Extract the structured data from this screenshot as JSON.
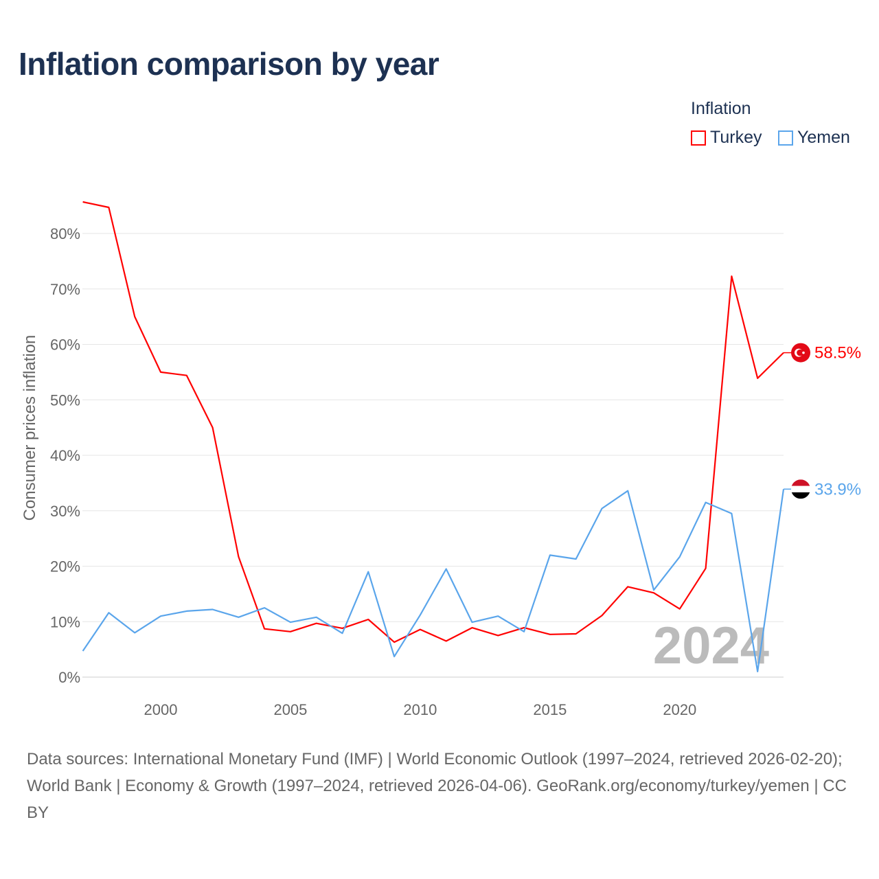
{
  "title": "Inflation comparison by year",
  "legend": {
    "title": "Inflation",
    "items": [
      {
        "name": "Turkey",
        "color": "#ff0000"
      },
      {
        "name": "Yemen",
        "color": "#5aa5eb"
      }
    ]
  },
  "chart_data": {
    "type": "line",
    "title": "Inflation comparison by year",
    "xlabel": "",
    "ylabel": "Consumer prices inflation",
    "x": [
      1997,
      1998,
      1999,
      2000,
      2001,
      2002,
      2003,
      2004,
      2005,
      2006,
      2007,
      2008,
      2009,
      2010,
      2011,
      2012,
      2013,
      2014,
      2015,
      2016,
      2017,
      2018,
      2019,
      2020,
      2021,
      2022,
      2023,
      2024
    ],
    "xlim": [
      1997,
      2024
    ],
    "ylim": [
      0,
      80
    ],
    "x_ticks": [
      {
        "v": 2000,
        "label": "2000"
      },
      {
        "v": 2005,
        "label": "2005"
      },
      {
        "v": 2010,
        "label": "2010"
      },
      {
        "v": 2015,
        "label": "2015"
      },
      {
        "v": 2020,
        "label": "2020"
      }
    ],
    "y_ticks": [
      {
        "v": 0,
        "label": "0%"
      },
      {
        "v": 10,
        "label": "10%"
      },
      {
        "v": 20,
        "label": "20%"
      },
      {
        "v": 30,
        "label": "30%"
      },
      {
        "v": 40,
        "label": "40%"
      },
      {
        "v": 50,
        "label": "50%"
      },
      {
        "v": 60,
        "label": "60%"
      },
      {
        "v": 70,
        "label": "70%"
      },
      {
        "v": 80,
        "label": "80%"
      }
    ],
    "grid": true,
    "legend_position": "top-right",
    "year_watermark": "2024",
    "series": [
      {
        "name": "Turkey",
        "color": "#ff0000",
        "end_label": "58.5%",
        "values": [
          85.7,
          84.7,
          65.0,
          55.0,
          54.4,
          45.0,
          21.7,
          8.7,
          8.2,
          9.7,
          8.8,
          10.4,
          6.3,
          8.6,
          6.5,
          8.9,
          7.5,
          8.9,
          7.7,
          7.8,
          11.1,
          16.3,
          15.2,
          12.3,
          19.6,
          72.3,
          53.9,
          58.5
        ]
      },
      {
        "name": "Yemen",
        "color": "#5aa5eb",
        "end_label": "33.9%",
        "values": [
          4.7,
          11.6,
          8.0,
          11.0,
          11.9,
          12.2,
          10.8,
          12.5,
          9.9,
          10.8,
          7.9,
          19.0,
          3.7,
          11.2,
          19.5,
          9.9,
          11.0,
          8.2,
          22.0,
          21.3,
          30.4,
          33.6,
          15.7,
          21.7,
          31.5,
          29.5,
          1.0,
          33.9
        ]
      }
    ]
  },
  "source": "Data sources: International Monetary Fund (IMF) | World Economic Outlook (1997–2024, retrieved 2026-02-20); World Bank | Economy & Growth (1997–2024, retrieved 2026-04-06). GeoRank.org/economy/turkey/yemen | CC BY"
}
